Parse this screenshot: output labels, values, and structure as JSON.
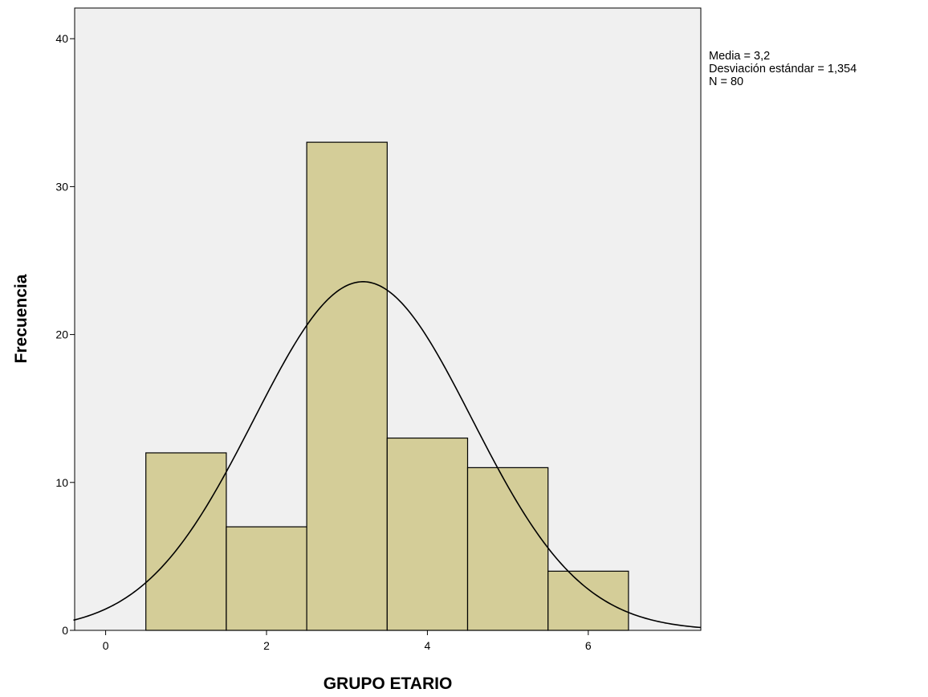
{
  "chart_data": {
    "type": "bar",
    "xlabel": "GRUPO ETARIO",
    "ylabel": "Frecuencia",
    "xlim": [
      -0.4,
      7.4
    ],
    "ylim": [
      0,
      42
    ],
    "xticks": [
      0,
      2,
      4,
      6
    ],
    "yticks": [
      0,
      10,
      20,
      30,
      40
    ],
    "bins": [
      {
        "from": 0.5,
        "to": 1.5,
        "count": 12
      },
      {
        "from": 1.5,
        "to": 2.5,
        "count": 7
      },
      {
        "from": 2.5,
        "to": 3.5,
        "count": 33
      },
      {
        "from": 3.5,
        "to": 4.5,
        "count": 13
      },
      {
        "from": 4.5,
        "to": 5.5,
        "count": 11
      },
      {
        "from": 5.5,
        "to": 6.5,
        "count": 4
      }
    ],
    "normal_curve": {
      "mean": 3.2,
      "sd": 1.354,
      "n": 80,
      "bin_width": 1
    },
    "stats": [
      "Media = 3,2",
      "Desviación estándar = 1,354",
      "N = 80"
    ],
    "colors": {
      "bar_fill": "#d4cd98",
      "bar_stroke": "#000000",
      "plot_bg": "#f0f0f0",
      "curve": "#000000"
    },
    "grid": false
  }
}
